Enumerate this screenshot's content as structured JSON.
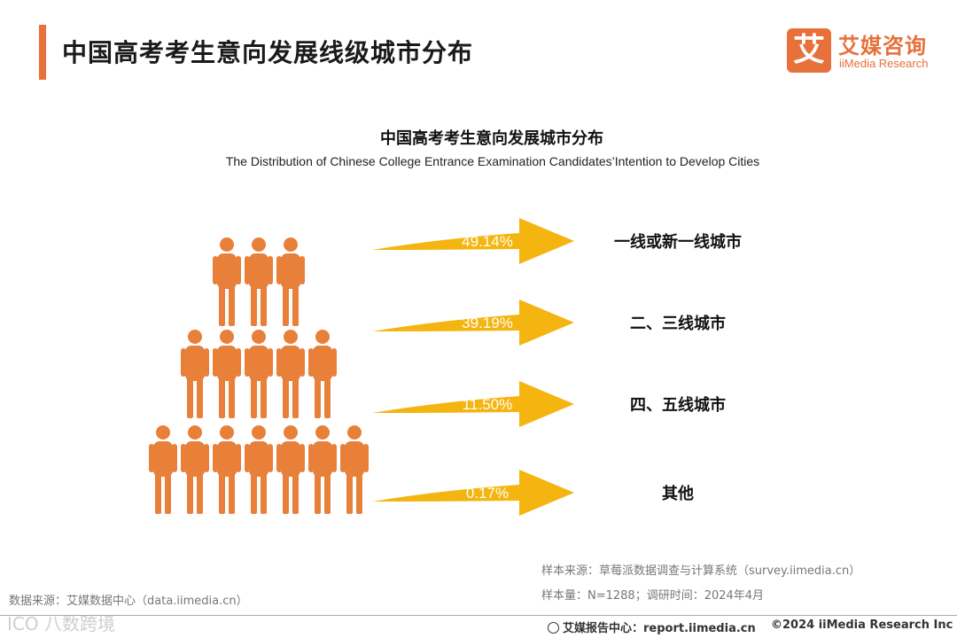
{
  "header": {
    "title": "中国高考考生意向发展线级城市分布",
    "logo_mark": "艾",
    "logo_cn": "艾媒咨询",
    "logo_en": "iiMedia Research"
  },
  "chart_data": {
    "type": "bar",
    "title": "中国高考考生意向发展城市分布",
    "subtitle": "The Distribution of Chinese College Entrance Examination Candidates’Intention to Develop Cities",
    "categories": [
      "一线或新一线城市",
      "二、三线城市",
      "四、五线城市",
      "其他"
    ],
    "values": [
      49.14,
      39.19,
      11.5,
      0.17
    ],
    "value_labels": [
      "49.14%",
      "39.19%",
      "11.50%",
      "0.17%"
    ],
    "unit": "%",
    "arrow_color": "#f5b510",
    "people_color": "#e8803a",
    "people_rows": [
      3,
      5,
      7
    ]
  },
  "footer": {
    "source_right": "样本来源：草莓派数据调查与计算系统（survey.iimedia.cn）",
    "sample": "样本量：N=1288；调研时间：2024年4月",
    "source_left": "数据来源：艾媒数据中心（data.iimedia.cn）",
    "report": "艾媒报告中心：report.iimedia.cn",
    "copyright": "©2024  iiMedia Research  Inc",
    "watermark": "ICO 八数跨境"
  }
}
